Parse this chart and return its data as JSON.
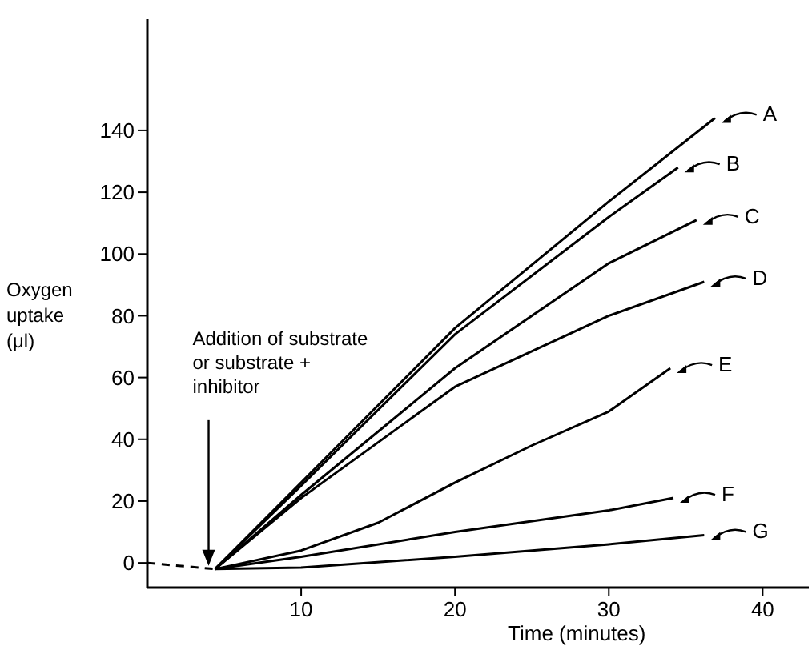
{
  "chart_data": {
    "type": "line",
    "legend": "right",
    "xlabel": "Time (minutes)",
    "ylabel": "Oxygen\nuptake\n(μl)",
    "xlim": [
      0,
      43
    ],
    "ylim": [
      -8,
      176
    ],
    "xticks": [
      10,
      20,
      30,
      40
    ],
    "yticks": [
      0,
      20,
      40,
      60,
      80,
      100,
      120,
      140
    ],
    "annotations": [
      {
        "text": "Addition of substrate\nor substrate +\ninhibitor",
        "x": 4.4,
        "y": -2
      }
    ],
    "series": [
      {
        "color": "#000000",
        "line_style": "dashed",
        "x": [
          0,
          4.4
        ],
        "values": [
          0,
          -2
        ]
      },
      {
        "name": "A",
        "color": "#000000",
        "x": [
          4.4,
          10,
          20,
          30,
          36.9
        ],
        "values": [
          -2,
          26,
          76,
          117,
          144
        ]
      },
      {
        "name": "B",
        "color": "#000000",
        "x": [
          4.4,
          10,
          20,
          30,
          34.5
        ],
        "values": [
          -2,
          25,
          74,
          112,
          128
        ]
      },
      {
        "name": "C",
        "color": "#000000",
        "x": [
          4.4,
          10,
          20,
          30,
          35.7
        ],
        "values": [
          -2,
          22,
          63,
          97,
          111
        ]
      },
      {
        "name": "D",
        "color": "#000000",
        "x": [
          4.4,
          10,
          20,
          30,
          36.2
        ],
        "values": [
          -2,
          21,
          57,
          80,
          91
        ]
      },
      {
        "name": "E",
        "color": "#000000",
        "x": [
          4.4,
          10,
          15,
          20,
          25,
          30,
          34
        ],
        "values": [
          -2,
          4,
          13,
          26,
          38,
          49,
          63
        ]
      },
      {
        "name": "F",
        "color": "#000000",
        "x": [
          4.4,
          10,
          20,
          30,
          34.2
        ],
        "values": [
          -2,
          2,
          10,
          17,
          21
        ]
      },
      {
        "name": "G",
        "color": "#000000",
        "x": [
          4.4,
          10,
          20,
          30,
          36.2
        ],
        "values": [
          -2,
          -1.5,
          2,
          6,
          9
        ]
      }
    ]
  }
}
